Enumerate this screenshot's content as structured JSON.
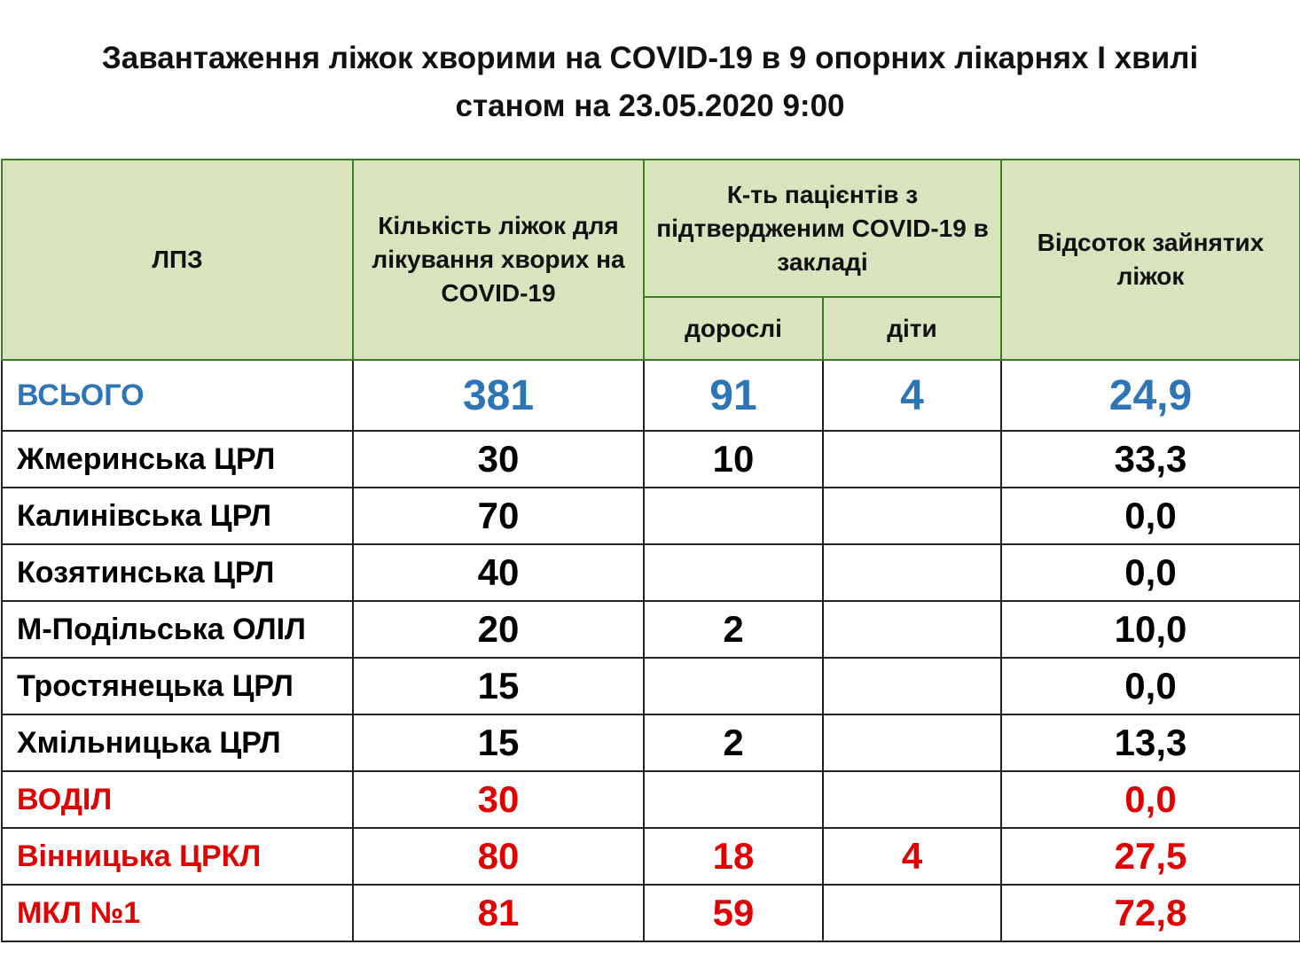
{
  "header": {
    "title": [
      "Завантаження ліжок хворими на COVID-19 в 9 опорних лікарнях І хвилі",
      "станом  на 23.05.2020  9:00"
    ]
  },
  "table": {
    "columns": [
      "ЛПЗ",
      "Кількість ліжок для лікування хворих на  COVID-19",
      "К-ть пацієнтів з підтвердженим COVID-19 в закладі",
      "Відсоток зайнятих ліжок"
    ],
    "subcolumns": [
      "дорослі",
      "діти"
    ],
    "rows": [
      {
        "cells": [
          "ВСЬОГО",
          "381",
          "91",
          "4",
          "24,9"
        ],
        "color": "#2e75b6"
      },
      {
        "cells": [
          "Жмеринська ЦРЛ",
          "30",
          "10",
          null,
          "33,3"
        ],
        "color": "#000000"
      },
      {
        "cells": [
          "Калинівська ЦРЛ",
          "70",
          null,
          null,
          "0,0"
        ],
        "color": "#000000"
      },
      {
        "cells": [
          "Козятинська ЦРЛ",
          "40",
          null,
          null,
          "0,0"
        ],
        "color": "#000000"
      },
      {
        "cells": [
          "М-Подільська ОЛІЛ",
          "20",
          "2",
          null,
          "10,0"
        ],
        "color": "#000000"
      },
      {
        "cells": [
          "Тростянецька ЦРЛ",
          "15",
          null,
          null,
          "0,0"
        ],
        "color": "#000000"
      },
      {
        "cells": [
          "Хмільницька ЦРЛ",
          "15",
          "2",
          null,
          "13,3"
        ],
        "color": "#000000"
      },
      {
        "cells": [
          "ВОДІЛ",
          "30",
          null,
          null,
          "0,0"
        ],
        "color": "#e00000"
      },
      {
        "cells": [
          "Вінницька ЦРКЛ",
          "80",
          "18",
          "4",
          "27,5"
        ],
        "color": "#e00000"
      },
      {
        "cells": [
          "МКЛ №1",
          "81",
          "59",
          null,
          "72,8"
        ],
        "color": "#e00000"
      }
    ]
  }
}
